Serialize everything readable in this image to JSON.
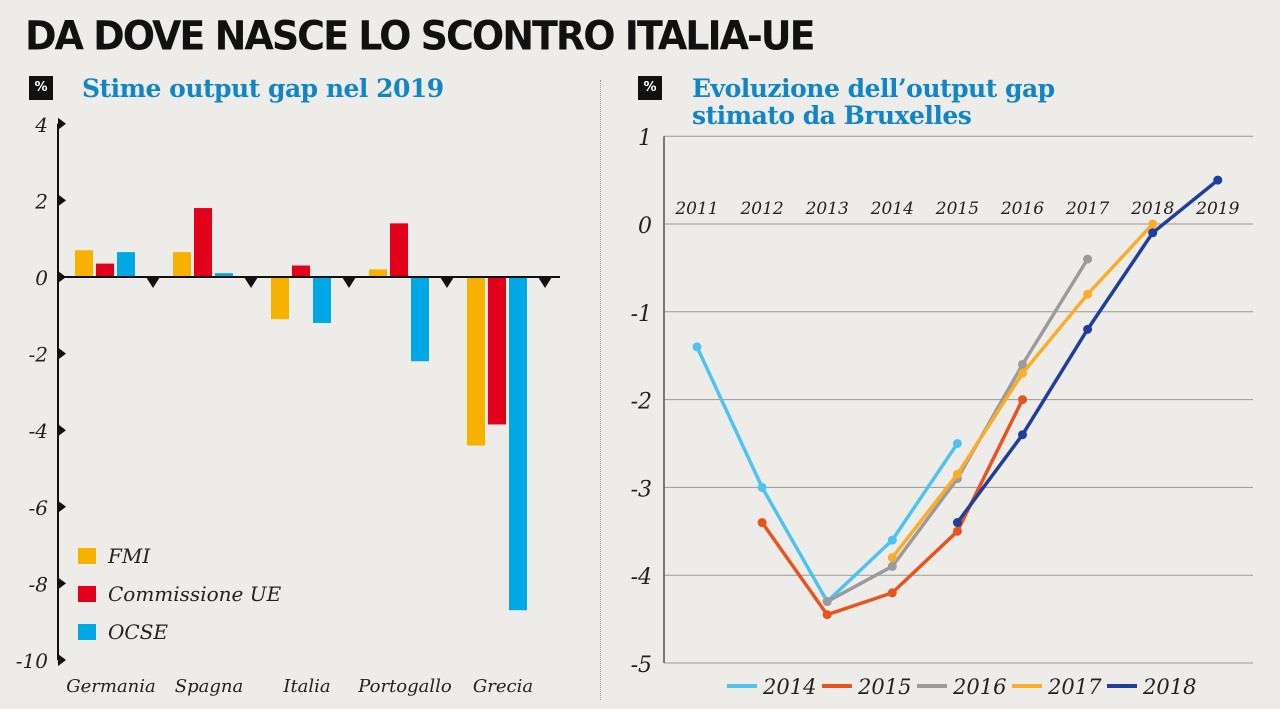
{
  "title": "DA DOVE NASCE LO SCONTRO ITALIA-UE",
  "chart_data": [
    {
      "type": "bar",
      "title": "Stime output gap nel 2019",
      "ylabel": "%",
      "ylim": [
        -10,
        4
      ],
      "yticks": [
        4,
        2,
        0,
        -2,
        -4,
        -6,
        -8,
        -10
      ],
      "categories": [
        "Germania",
        "Spagna",
        "Italia",
        "Portogallo",
        "Grecia"
      ],
      "legend_position": "bottom-left",
      "series": [
        {
          "name": "FMI",
          "color": "#f7b200",
          "values": [
            0.7,
            0.65,
            -1.1,
            0.2,
            -4.4
          ]
        },
        {
          "name": "Commissione UE",
          "color": "#e2001a",
          "values": [
            0.35,
            1.8,
            0.3,
            1.4,
            -3.85
          ]
        },
        {
          "name": "OCSE",
          "color": "#00a9e6",
          "values": [
            0.65,
            0.1,
            -1.2,
            -2.2,
            -8.7
          ]
        }
      ]
    },
    {
      "type": "line",
      "title": "Evoluzione dell’output gap stimato da Bruxelles",
      "ylabel": "%",
      "ylim": [
        -5,
        1
      ],
      "yticks": [
        1,
        0,
        -1,
        -2,
        -3,
        -4,
        -5
      ],
      "x": [
        "2011",
        "2012",
        "2013",
        "2014",
        "2015",
        "2016",
        "2017",
        "2018",
        "2019"
      ],
      "grid": true,
      "legend_position": "bottom",
      "series": [
        {
          "name": "2014",
          "color": "#4fc3f0",
          "points": [
            [
              "2011",
              -1.4
            ],
            [
              "2012",
              -3.0
            ],
            [
              "2013",
              -4.3
            ],
            [
              "2014",
              -3.6
            ],
            [
              "2015",
              -2.5
            ]
          ]
        },
        {
          "name": "2015",
          "color": "#e8541e",
          "points": [
            [
              "2012",
              -3.4
            ],
            [
              "2013",
              -4.45
            ],
            [
              "2014",
              -4.2
            ],
            [
              "2015",
              -3.5
            ],
            [
              "2016",
              -2.0
            ]
          ]
        },
        {
          "name": "2016",
          "color": "#9b9b9b",
          "points": [
            [
              "2013",
              -4.3
            ],
            [
              "2014",
              -3.9
            ],
            [
              "2015",
              -2.9
            ],
            [
              "2016",
              -1.6
            ],
            [
              "2017",
              -0.4
            ]
          ]
        },
        {
          "name": "2017",
          "color": "#f9ad2a",
          "points": [
            [
              "2014",
              -3.8
            ],
            [
              "2015",
              -2.85
            ],
            [
              "2016",
              -1.7
            ],
            [
              "2017",
              -0.8
            ],
            [
              "2018",
              0.0
            ]
          ]
        },
        {
          "name": "2018",
          "color": "#1f3f9a",
          "points": [
            [
              "2015",
              -3.4
            ],
            [
              "2016",
              -2.4
            ],
            [
              "2017",
              -1.2
            ],
            [
              "2018",
              -0.1
            ],
            [
              "2019",
              0.5
            ]
          ]
        }
      ]
    }
  ]
}
